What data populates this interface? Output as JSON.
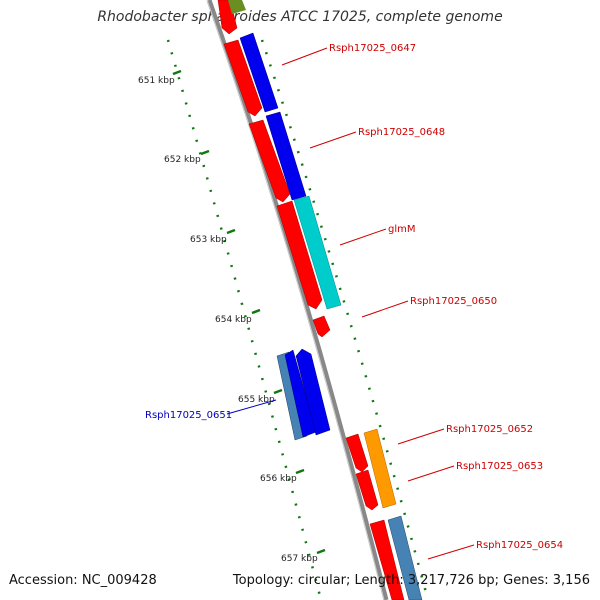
{
  "title": "Rhodobacter sphaeroides ATCC 17025, complete genome",
  "footer": {
    "accession": "Accession: NC_009428",
    "topology": "Topology: circular; Length: 3,217,726 bp; Genes: 3,156"
  },
  "colors": {
    "forward_label": "#cc0000",
    "reverse_label": "#0000bb",
    "backbone": "#888888",
    "tick": "#117711"
  },
  "ticks": [
    "651 kbp",
    "652 kbp",
    "653 kbp",
    "654 kbp",
    "655 kbp",
    "656 kbp",
    "657 kbp"
  ],
  "gene_labels": [
    {
      "text": "Rsph17025_0647",
      "strand": "forward"
    },
    {
      "text": "Rsph17025_0648",
      "strand": "forward"
    },
    {
      "text": "glmM",
      "strand": "forward"
    },
    {
      "text": "Rsph17025_0650",
      "strand": "forward"
    },
    {
      "text": "Rsph17025_0651",
      "strand": "reverse"
    },
    {
      "text": "Rsph17025_0652",
      "strand": "forward"
    },
    {
      "text": "Rsph17025_0653",
      "strand": "forward"
    },
    {
      "text": "Rsph17025_0654",
      "strand": "forward"
    }
  ]
}
